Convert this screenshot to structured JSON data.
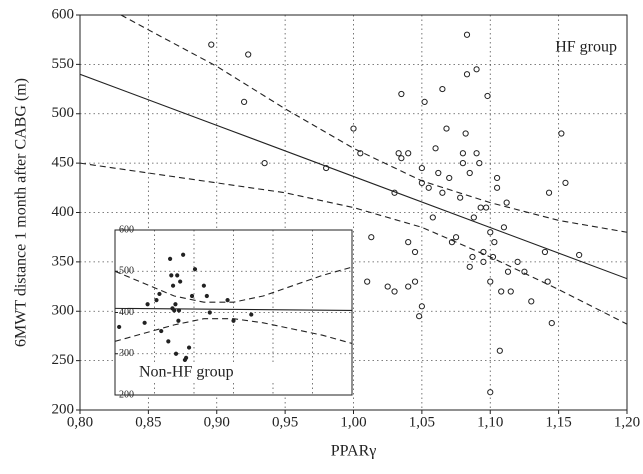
{
  "chart_data": [
    {
      "type": "scatter",
      "x_label": "PPARγ",
      "y_label": "6MWT distance 1 month after CABG (m)",
      "annotation": "HF group",
      "xlim": [
        0.8,
        1.2
      ],
      "ylim": [
        200,
        600
      ],
      "xticks": [
        {
          "value": 0.8,
          "label": "0,80"
        },
        {
          "value": 0.85,
          "label": "0,85"
        },
        {
          "value": 0.9,
          "label": "0,90"
        },
        {
          "value": 0.95,
          "label": "0,95"
        },
        {
          "value": 1.0,
          "label": "1,00"
        },
        {
          "value": 1.05,
          "label": "1,05"
        },
        {
          "value": 1.1,
          "label": "1,10"
        },
        {
          "value": 1.15,
          "label": "1,15"
        },
        {
          "value": 1.2,
          "label": "1,20"
        }
      ],
      "yticks": [
        200,
        250,
        300,
        350,
        400,
        450,
        500,
        550,
        600
      ],
      "grid": true,
      "series": [
        {
          "style": "open-circle",
          "color": "#222",
          "x": [
            0.896,
            0.923,
            0.92,
            0.935,
            0.98,
            1.0,
            1.005,
            1.01,
            1.013,
            1.025,
            1.03,
            1.03,
            1.033,
            1.035,
            1.035,
            1.04,
            1.04,
            1.04,
            1.045,
            1.045,
            1.048,
            1.05,
            1.05,
            1.05,
            1.052,
            1.055,
            1.058,
            1.06,
            1.062,
            1.065,
            1.065,
            1.068,
            1.07,
            1.072,
            1.075,
            1.078,
            1.08,
            1.08,
            1.082,
            1.083,
            1.083,
            1.085,
            1.085,
            1.087,
            1.088,
            1.09,
            1.09,
            1.092,
            1.093,
            1.095,
            1.095,
            1.097,
            1.098,
            1.1,
            1.1,
            1.1,
            1.102,
            1.103,
            1.105,
            1.105,
            1.107,
            1.108,
            1.11,
            1.112,
            1.113,
            1.115,
            1.12,
            1.125,
            1.13,
            1.14,
            1.142,
            1.143,
            1.145,
            1.152,
            1.155,
            1.165
          ],
          "values": [
            570,
            560,
            512,
            450,
            445,
            485,
            460,
            330,
            375,
            325,
            320,
            420,
            460,
            520,
            455,
            460,
            370,
            325,
            360,
            330,
            295,
            305,
            430,
            445,
            512,
            425,
            395,
            465,
            440,
            525,
            420,
            485,
            435,
            370,
            375,
            415,
            460,
            450,
            480,
            580,
            540,
            440,
            345,
            355,
            395,
            545,
            460,
            450,
            405,
            360,
            350,
            405,
            518,
            380,
            330,
            218,
            355,
            370,
            425,
            435,
            260,
            320,
            385,
            410,
            340,
            320,
            350,
            340,
            310,
            360,
            330,
            420,
            288,
            480,
            430,
            357
          ]
        },
        {
          "style": "solid",
          "color": "#222",
          "x": [
            0.8,
            1.2
          ],
          "values": [
            540,
            333
          ]
        },
        {
          "style": "dashed",
          "color": "#222",
          "x": [
            0.83,
            0.85,
            0.9,
            0.95,
            1.0,
            1.05,
            1.1,
            1.15,
            1.2
          ],
          "values": [
            600,
            585,
            548,
            505,
            465,
            432,
            410,
            392,
            380
          ]
        },
        {
          "style": "dashed",
          "color": "#222",
          "x": [
            0.8,
            0.85,
            0.9,
            0.95,
            1.0,
            1.05,
            1.1,
            1.15,
            1.2
          ],
          "values": [
            450,
            440,
            430,
            420,
            405,
            385,
            355,
            322,
            287
          ]
        }
      ]
    },
    {
      "type": "scatter",
      "annotation": "Non-HF group",
      "xlim": [
        0.8,
        1.2
      ],
      "ylim": [
        200,
        600
      ],
      "yticks": [
        200,
        300,
        400,
        500,
        600
      ],
      "grid": true,
      "series": [
        {
          "style": "dot",
          "color": "#222",
          "x": [
            0.807,
            0.845,
            0.85,
            0.855,
            0.87,
            0.875,
            0.878,
            0.89,
            0.893,
            0.895,
            0.897,
            0.898,
            0.9,
            0.902,
            0.903,
            0.905,
            0.907,
            0.908,
            0.91,
            0.912,
            0.915,
            0.918,
            0.92,
            0.925,
            0.93,
            0.935,
            0.94,
            0.95,
            0.955,
            0.96,
            1.0,
            1.03,
            0.99
          ],
          "values": [
            365,
            255,
            375,
            420,
            430,
            445,
            355,
            330,
            530,
            490,
            410,
            465,
            405,
            420,
            300,
            490,
            380,
            405,
            475,
            240,
            540,
            285,
            290,
            315,
            440,
            505,
            270,
            465,
            440,
            400,
            380,
            395,
            430
          ]
        },
        {
          "style": "solid",
          "color": "#222",
          "x": [
            0.8,
            1.2
          ],
          "values": [
            410,
            405
          ]
        },
        {
          "style": "dashed",
          "color": "#222",
          "x": [
            0.8,
            0.85,
            0.9,
            0.95,
            1.0,
            1.05,
            1.1,
            1.15,
            1.2
          ],
          "values": [
            500,
            470,
            440,
            425,
            425,
            440,
            465,
            490,
            510
          ]
        },
        {
          "style": "dashed",
          "color": "#222",
          "x": [
            0.8,
            0.85,
            0.9,
            0.95,
            1.0,
            1.05,
            1.1,
            1.15,
            1.2
          ],
          "values": [
            330,
            350,
            370,
            385,
            385,
            375,
            360,
            345,
            325
          ]
        }
      ]
    }
  ]
}
